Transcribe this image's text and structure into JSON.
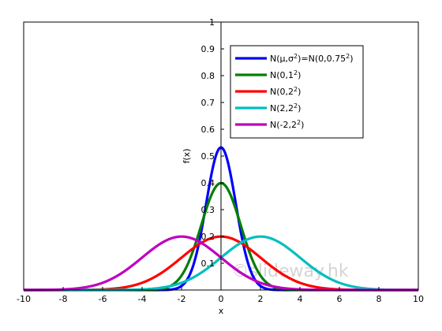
{
  "chart_data": {
    "type": "line",
    "title": "",
    "xlabel": "x",
    "ylabel": "f(x)",
    "xlim": [
      -10,
      10
    ],
    "ylim": [
      0,
      1
    ],
    "xticks": [
      -10,
      -8,
      -6,
      -4,
      -2,
      0,
      2,
      4,
      6,
      8,
      10
    ],
    "yticks": [
      0.1,
      0.2,
      0.3,
      0.4,
      0.5,
      0.6,
      0.7,
      0.8,
      0.9,
      1
    ],
    "ytick_labels": [
      "0.1",
      "0.2",
      "0.3",
      "0.4",
      "0.5",
      "0.6",
      "0.7",
      "0.8",
      "0.9",
      "1"
    ],
    "grid": false,
    "axes_through_origin": true,
    "legend_position": "top-right",
    "series": [
      {
        "name_parts": [
          [
            "N(μ,σ",
            ""
          ],
          [
            "2",
            "sup"
          ],
          [
            ")=N(0,0.75",
            ""
          ],
          [
            "2",
            "sup"
          ],
          [
            ")",
            ""
          ]
        ],
        "mu": 0,
        "sigma": 0.75,
        "color": "#0000ff"
      },
      {
        "name_parts": [
          [
            "N(0,1",
            ""
          ],
          [
            "2",
            "sup"
          ],
          [
            ")",
            ""
          ]
        ],
        "mu": 0,
        "sigma": 1,
        "color": "#007f00"
      },
      {
        "name_parts": [
          [
            "N(0,2",
            ""
          ],
          [
            "2",
            "sup"
          ],
          [
            ")",
            ""
          ]
        ],
        "mu": 0,
        "sigma": 2,
        "color": "#ff0000"
      },
      {
        "name_parts": [
          [
            "N(2,2",
            ""
          ],
          [
            "2",
            "sup"
          ],
          [
            ")",
            ""
          ]
        ],
        "mu": 2,
        "sigma": 2,
        "color": "#00bfbf"
      },
      {
        "name_parts": [
          [
            "N(-2,2",
            ""
          ],
          [
            "2",
            "sup"
          ],
          [
            ")",
            ""
          ]
        ],
        "mu": -2,
        "sigma": 2,
        "color": "#bf00bf"
      }
    ],
    "x": [
      -10,
      -9,
      -8,
      -7,
      -6,
      -5,
      -4,
      -3,
      -2,
      -1,
      0,
      1,
      2,
      3,
      4,
      5,
      6,
      7,
      8,
      9,
      10
    ],
    "watermark": "©slideway.hk"
  }
}
